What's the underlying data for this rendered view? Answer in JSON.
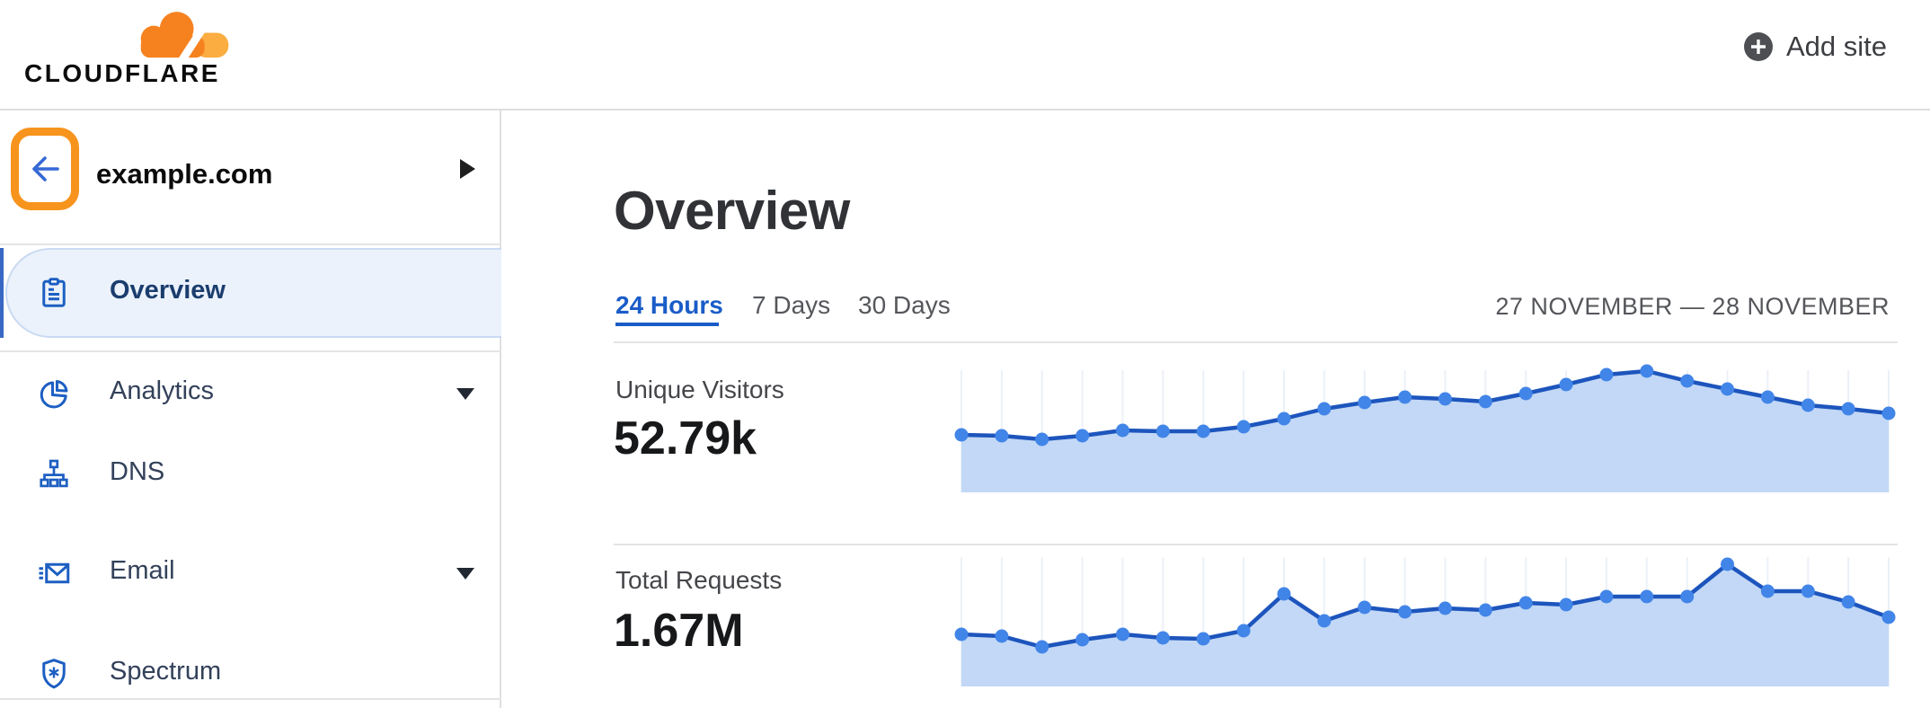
{
  "header": {
    "brand": "CLOUDFLARE",
    "add_site_label": "Add site",
    "icons": [
      "cloudflare-cloud-logo",
      "plus-circle-icon"
    ]
  },
  "sidebar": {
    "site_name": "example.com",
    "back_icon": "back-arrow-icon",
    "expand_icon": "caret-right-icon",
    "items": [
      {
        "label": "Overview",
        "icon": "clipboard-icon",
        "selected": true,
        "expandable": false
      },
      {
        "label": "Analytics",
        "icon": "pie-chart-icon",
        "selected": false,
        "expandable": true
      },
      {
        "label": "DNS",
        "icon": "sitemap-icon",
        "selected": false,
        "expandable": false
      },
      {
        "label": "Email",
        "icon": "email-icon",
        "selected": false,
        "expandable": true
      },
      {
        "label": "Spectrum",
        "icon": "shield-icon",
        "selected": false,
        "expandable": false
      }
    ]
  },
  "main": {
    "title": "Overview",
    "tabs": [
      {
        "label": "24 Hours",
        "active": true
      },
      {
        "label": "7 Days",
        "active": false
      },
      {
        "label": "30 Days",
        "active": false
      }
    ],
    "date_range": "27 NOVEMBER — 28 NOVEMBER"
  },
  "chart_data": [
    {
      "type": "area",
      "title": "Unique Visitors",
      "value_label": "52.79k",
      "x_axis": "hourly points over 24-hour window (27 Nov – 28 Nov, unlabeled)",
      "values": [
        64,
        63,
        59,
        63,
        69,
        68,
        68,
        73,
        82,
        93,
        100,
        106,
        104,
        101,
        110,
        120,
        131,
        135,
        124,
        115,
        106,
        97,
        93,
        88
      ],
      "units": "relative (no y-axis shown)",
      "ylim": [
        0,
        143
      ],
      "grid": "vertical-only",
      "legend": "none"
    },
    {
      "type": "area",
      "title": "Total Requests",
      "value_label": "1.67M",
      "x_axis": "hourly points over 24-hour window (27 Nov – 28 Nov, unlabeled)",
      "values": [
        58,
        56,
        44,
        52,
        58,
        54,
        53,
        62,
        103,
        73,
        88,
        83,
        87,
        85,
        93,
        91,
        100,
        100,
        100,
        136,
        106,
        106,
        94,
        77
      ],
      "units": "relative (no y-axis shown)",
      "ylim": [
        0,
        149
      ],
      "grid": "vertical-only",
      "legend": "none"
    }
  ],
  "colors": {
    "brand_orange": "#f6821f",
    "brand_orange_light": "#fbad41",
    "highlight_box_orange": "#f7941d",
    "active_blue": "#1a5cc8",
    "sidebar_icon_blue": "#1d5fc2",
    "chart": {
      "line": "#1d55bd",
      "dot": "#4285e8",
      "fill": "#c2d8f6",
      "grid": "#ecf1f8"
    }
  }
}
